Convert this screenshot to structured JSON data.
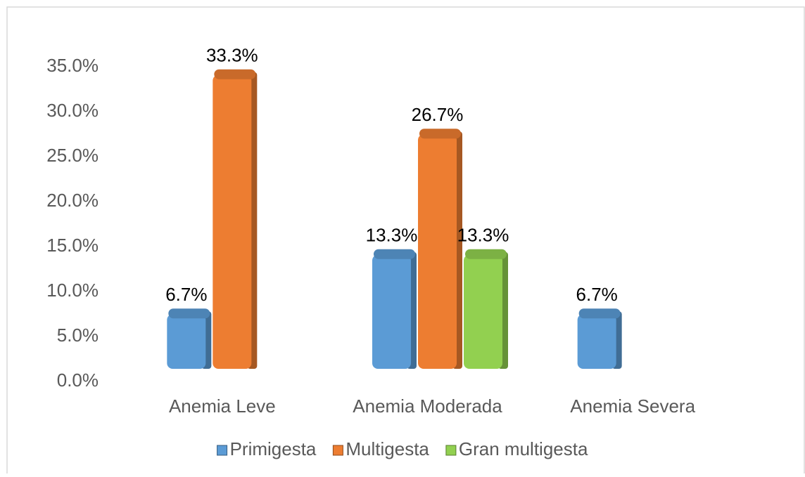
{
  "chart_data": {
    "type": "bar",
    "categories": [
      "Anemia Leve",
      "Anemia Moderada",
      "Anemia Severa"
    ],
    "series": [
      {
        "name": "Primigesta",
        "color": "#5b9bd5",
        "values": [
          6.7,
          13.3,
          6.7
        ],
        "value_labels": [
          "6.7%",
          "13.3%",
          "6.7%"
        ]
      },
      {
        "name": "Multigesta",
        "color": "#ed7d31",
        "values": [
          33.3,
          26.7,
          null
        ],
        "value_labels": [
          "33.3%",
          "26.7%",
          null
        ]
      },
      {
        "name": "Gran multigesta",
        "color": "#92d050",
        "values": [
          null,
          13.3,
          null
        ],
        "value_labels": [
          null,
          "13.3%",
          null
        ]
      }
    ],
    "ylim": [
      0,
      35
    ],
    "yticks": [
      {
        "value": 0,
        "label": "0.0%"
      },
      {
        "value": 5,
        "label": "5.0%"
      },
      {
        "value": 10,
        "label": "10.0%"
      },
      {
        "value": 15,
        "label": "15.0%"
      },
      {
        "value": 20,
        "label": "20.0%"
      },
      {
        "value": 25,
        "label": "25.0%"
      },
      {
        "value": 30,
        "label": "30.0%"
      },
      {
        "value": 35,
        "label": "35.0%"
      }
    ],
    "legend": "bottom"
  }
}
